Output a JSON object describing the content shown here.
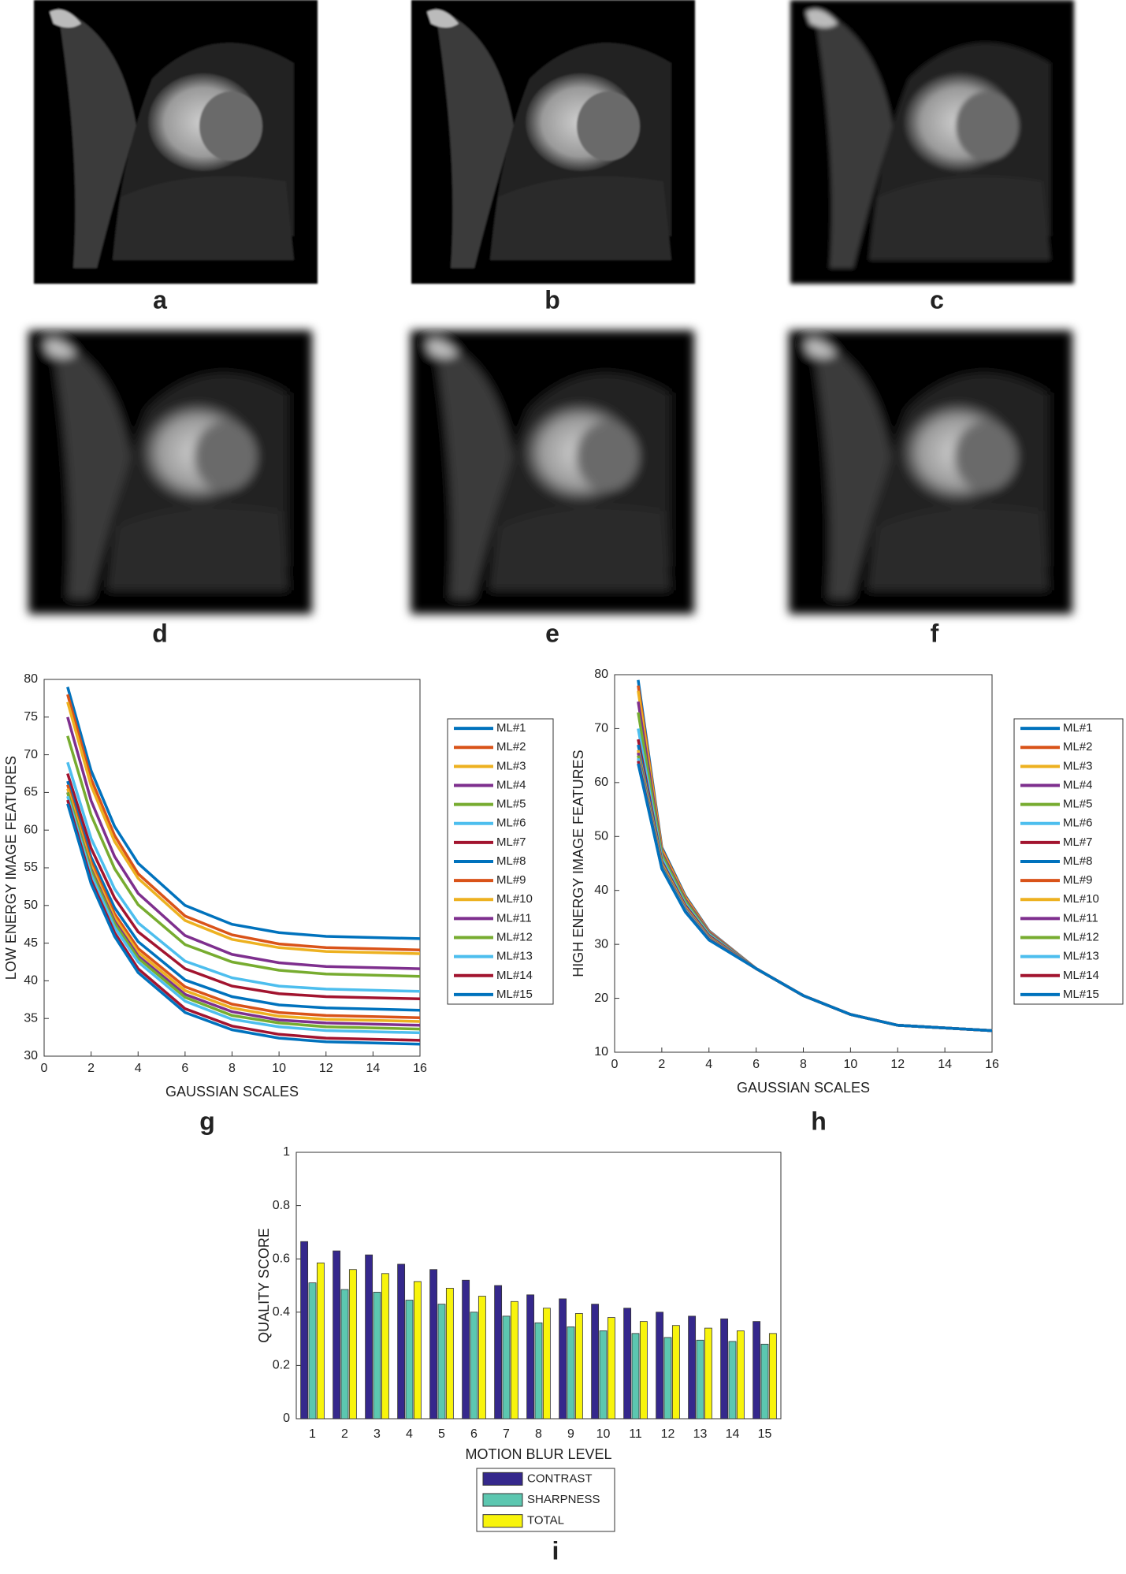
{
  "image_labels": [
    "a",
    "b",
    "c",
    "d",
    "e",
    "f"
  ],
  "chart_data": [
    {
      "type": "line",
      "panel_label": "g",
      "xlabel": "GAUSSIAN SCALES",
      "ylabel": "LOW ENERGY IMAGE FEATURES",
      "xlim": [
        0,
        16
      ],
      "xticks": [
        0,
        2,
        4,
        6,
        8,
        10,
        12,
        14,
        16
      ],
      "ylim": [
        30,
        80
      ],
      "yticks": [
        30,
        35,
        40,
        45,
        50,
        55,
        60,
        65,
        70,
        75,
        80
      ],
      "legend": "outside-right",
      "x": [
        1,
        2,
        3,
        4,
        6,
        8,
        10,
        12,
        16
      ],
      "series": [
        {
          "name": "ML#1",
          "color": "#0072BD",
          "values": [
            79,
            67.9,
            60.5,
            55.6,
            50.0,
            47.5,
            46.4,
            45.9,
            45.6
          ]
        },
        {
          "name": "ML#2",
          "color": "#D95319",
          "values": [
            78,
            66.8,
            59.3,
            54.2,
            48.6,
            46.1,
            44.9,
            44.4,
            44.1
          ]
        },
        {
          "name": "ML#3",
          "color": "#EDB120",
          "values": [
            77,
            65.9,
            58.5,
            53.6,
            48.0,
            45.5,
            44.4,
            43.9,
            43.6
          ]
        },
        {
          "name": "ML#4",
          "color": "#7E2F8E",
          "values": [
            75,
            63.9,
            56.5,
            51.6,
            46.0,
            43.5,
            42.4,
            41.9,
            41.6
          ]
        },
        {
          "name": "ML#5",
          "color": "#77AC30",
          "values": [
            72.5,
            62.0,
            54.9,
            50.1,
            44.8,
            42.5,
            41.4,
            40.9,
            40.6
          ]
        },
        {
          "name": "ML#6",
          "color": "#4DBEEE",
          "values": [
            69,
            58.9,
            52.2,
            47.7,
            42.6,
            40.4,
            39.3,
            38.9,
            38.6
          ]
        },
        {
          "name": "ML#7",
          "color": "#A2142F",
          "values": [
            67.5,
            57.6,
            51.0,
            46.5,
            41.6,
            39.3,
            38.3,
            37.9,
            37.6
          ]
        },
        {
          "name": "ML#8",
          "color": "#0072BD",
          "values": [
            66.5,
            56.4,
            49.7,
            45.2,
            40.1,
            37.9,
            36.8,
            36.4,
            36.1
          ]
        },
        {
          "name": "ML#9",
          "color": "#D95319",
          "values": [
            66,
            55.8,
            48.9,
            44.3,
            39.2,
            36.9,
            35.8,
            35.4,
            35.1
          ]
        },
        {
          "name": "ML#10",
          "color": "#EDB120",
          "values": [
            65.5,
            55.3,
            48.4,
            43.8,
            38.7,
            36.4,
            35.3,
            34.9,
            34.6
          ]
        },
        {
          "name": "ML#11",
          "color": "#7E2F8E",
          "values": [
            65,
            54.8,
            47.9,
            43.3,
            38.2,
            35.9,
            34.8,
            34.4,
            34.1
          ]
        },
        {
          "name": "ML#12",
          "color": "#77AC30",
          "values": [
            65,
            54.6,
            47.6,
            43.0,
            37.8,
            35.4,
            34.4,
            33.9,
            33.6
          ]
        },
        {
          "name": "ML#13",
          "color": "#4DBEEE",
          "values": [
            64.5,
            54.1,
            47.1,
            42.5,
            37.3,
            34.9,
            33.9,
            33.4,
            33.1
          ]
        },
        {
          "name": "ML#14",
          "color": "#A2142F",
          "values": [
            64,
            53.4,
            46.4,
            41.6,
            36.3,
            34.0,
            32.9,
            32.4,
            32.1
          ]
        },
        {
          "name": "ML#15",
          "color": "#0072BD",
          "values": [
            63.5,
            52.9,
            45.9,
            41.1,
            35.8,
            33.5,
            32.4,
            31.9,
            31.6
          ]
        }
      ]
    },
    {
      "type": "line",
      "panel_label": "h",
      "xlabel": "GAUSSIAN SCALES",
      "ylabel": "HIGH ENERGY IMAGE FEATURES",
      "xlim": [
        0,
        16
      ],
      "xticks": [
        0,
        2,
        4,
        6,
        8,
        10,
        12,
        14,
        16
      ],
      "ylim": [
        10,
        80
      ],
      "yticks": [
        10,
        20,
        30,
        40,
        50,
        60,
        70,
        80
      ],
      "legend": "outside-right",
      "x": [
        1,
        2,
        3,
        4,
        6,
        8,
        10,
        12,
        16
      ],
      "series": [
        {
          "name": "ML#1",
          "color": "#0072BD",
          "values": [
            79,
            48,
            39,
            32.5,
            25.5,
            20.5,
            17,
            15,
            14
          ]
        },
        {
          "name": "ML#2",
          "color": "#D95319",
          "values": [
            78,
            47.7,
            38.8,
            32.4,
            25.5,
            20.5,
            17,
            15,
            14
          ]
        },
        {
          "name": "ML#3",
          "color": "#EDB120",
          "values": [
            77,
            47.4,
            38.6,
            32.3,
            25.5,
            20.5,
            17,
            15,
            14
          ]
        },
        {
          "name": "ML#4",
          "color": "#7E2F8E",
          "values": [
            75,
            47,
            38.3,
            32.2,
            25.5,
            20.5,
            17,
            15,
            14
          ]
        },
        {
          "name": "ML#5",
          "color": "#77AC30",
          "values": [
            73,
            46.6,
            38,
            32,
            25.5,
            20.5,
            17,
            15,
            14
          ]
        },
        {
          "name": "ML#6",
          "color": "#4DBEEE",
          "values": [
            70,
            45.9,
            37.5,
            31.8,
            25.5,
            20.5,
            17,
            15,
            14
          ]
        },
        {
          "name": "ML#7",
          "color": "#A2142F",
          "values": [
            68,
            45.4,
            37.2,
            31.6,
            25.5,
            20.5,
            17,
            15,
            14
          ]
        },
        {
          "name": "ML#8",
          "color": "#0072BD",
          "values": [
            67,
            45.2,
            37,
            31.5,
            25.5,
            20.5,
            17,
            15,
            14
          ]
        },
        {
          "name": "ML#9",
          "color": "#D95319",
          "values": [
            66,
            45,
            36.9,
            31.4,
            25.5,
            20.5,
            17,
            15,
            14
          ]
        },
        {
          "name": "ML#10",
          "color": "#EDB120",
          "values": [
            66,
            44.9,
            36.8,
            31.3,
            25.5,
            20.5,
            17,
            15,
            14
          ]
        },
        {
          "name": "ML#11",
          "color": "#7E2F8E",
          "values": [
            65.5,
            44.6,
            36.6,
            31.2,
            25.5,
            20.5,
            17,
            15,
            14
          ]
        },
        {
          "name": "ML#12",
          "color": "#77AC30",
          "values": [
            65,
            44.4,
            36.4,
            31.1,
            25.5,
            20.5,
            17,
            15,
            14
          ]
        },
        {
          "name": "ML#13",
          "color": "#4DBEEE",
          "values": [
            64.5,
            44.2,
            36.3,
            31,
            25.5,
            20.5,
            17,
            15,
            14
          ]
        },
        {
          "name": "ML#14",
          "color": "#A2142F",
          "values": [
            64,
            44.1,
            36.1,
            30.9,
            25.5,
            20.5,
            17,
            15,
            14
          ]
        },
        {
          "name": "ML#15",
          "color": "#0072BD",
          "values": [
            63.5,
            44,
            36,
            30.8,
            25.5,
            20.5,
            17,
            15,
            14
          ]
        }
      ]
    },
    {
      "type": "bar",
      "panel_label": "i",
      "xlabel": "MOTION BLUR LEVEL",
      "ylabel": "QUALITY SCORE",
      "ylim": [
        0,
        1
      ],
      "yticks": [
        0,
        0.2,
        0.4,
        0.6,
        0.8,
        1
      ],
      "legend": "below",
      "categories": [
        "1",
        "2",
        "3",
        "4",
        "5",
        "6",
        "7",
        "8",
        "9",
        "10",
        "11",
        "12",
        "13",
        "14",
        "15"
      ],
      "series": [
        {
          "name": "CONTRAST",
          "color": "#35288C",
          "values": [
            0.665,
            0.63,
            0.615,
            0.58,
            0.56,
            0.52,
            0.5,
            0.465,
            0.45,
            0.43,
            0.415,
            0.4,
            0.385,
            0.375,
            0.365
          ]
        },
        {
          "name": "SHARPNESS",
          "color": "#5CC7B0",
          "values": [
            0.51,
            0.485,
            0.475,
            0.445,
            0.43,
            0.4,
            0.385,
            0.36,
            0.345,
            0.33,
            0.32,
            0.305,
            0.295,
            0.29,
            0.28
          ]
        },
        {
          "name": "TOTAL",
          "color": "#F8F40C",
          "values": [
            0.585,
            0.56,
            0.545,
            0.515,
            0.49,
            0.46,
            0.44,
            0.415,
            0.395,
            0.38,
            0.365,
            0.35,
            0.34,
            0.33,
            0.32
          ]
        }
      ]
    }
  ]
}
